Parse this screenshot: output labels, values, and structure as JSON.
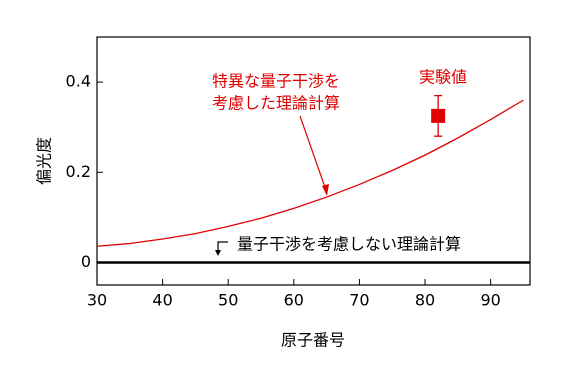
{
  "chart_data": {
    "type": "line",
    "xlabel": "原子番号",
    "ylabel": "偏光度",
    "xlim": [
      30,
      96
    ],
    "ylim": [
      -0.05,
      0.5
    ],
    "xticks": [
      30,
      40,
      50,
      60,
      70,
      80,
      90
    ],
    "yticks": [
      0,
      0.2,
      0.4
    ],
    "series": [
      {
        "name": "特異な量子干渉を考慮した理論計算",
        "color": "#e00000",
        "x": [
          30,
          35,
          40,
          45,
          50,
          55,
          60,
          65,
          70,
          75,
          80,
          85,
          90,
          95
        ],
        "values": [
          0.036,
          0.042,
          0.052,
          0.064,
          0.08,
          0.098,
          0.12,
          0.145,
          0.173,
          0.204,
          0.238,
          0.276,
          0.317,
          0.36
        ]
      },
      {
        "name": "量子干渉を考慮しない理論計算",
        "color": "#000000",
        "x": [
          30,
          96
        ],
        "values": [
          0,
          0
        ]
      },
      {
        "name": "実験値",
        "color": "#e00000",
        "type": "errorbar",
        "x": [
          82
        ],
        "values": [
          0.325
        ],
        "errors": [
          0.045
        ]
      }
    ],
    "annotations": [
      "特異な量子干渉を",
      "考慮した理論計算"
    ]
  }
}
